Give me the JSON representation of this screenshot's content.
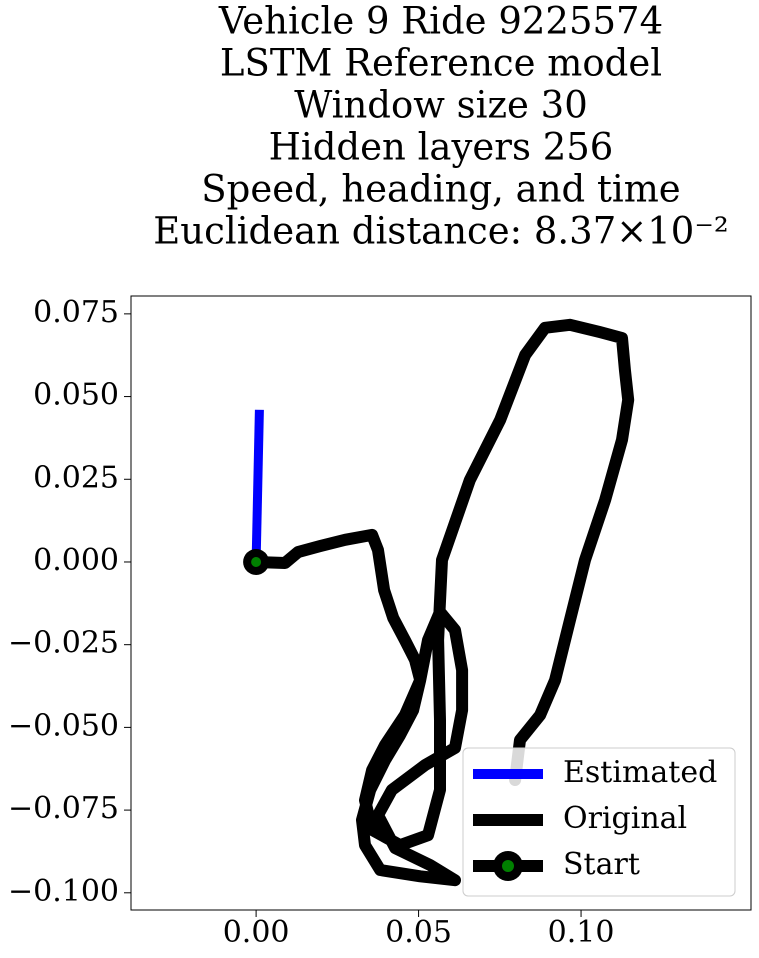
{
  "chart_data": {
    "type": "line",
    "title": [
      "Vehicle 9 Ride 9225574",
      "LSTM Reference model",
      "Window size 30",
      "Hidden layers 256",
      "Speed, heading, and time",
      "Euclidean distance: 8.37×10⁻²"
    ],
    "xlim": [
      -0.0385,
      0.1523
    ],
    "ylim": [
      -0.1052,
      0.0804
    ],
    "xticks": [
      {
        "value": 0,
        "label": "0.00"
      },
      {
        "value": 0.05,
        "label": "0.05"
      },
      {
        "value": 0.1,
        "label": "0.10"
      }
    ],
    "yticks": [
      {
        "value": 0.075,
        "label": "0.075"
      },
      {
        "value": 0.05,
        "label": "0.050"
      },
      {
        "value": 0.025,
        "label": "0.025"
      },
      {
        "value": 0,
        "label": "0.000"
      },
      {
        "value": -0.025,
        "label": "−0.025"
      },
      {
        "value": -0.05,
        "label": "−0.050"
      },
      {
        "value": -0.075,
        "label": "−0.075"
      },
      {
        "value": -0.1,
        "label": "−0.100"
      }
    ],
    "legend": "lower right",
    "series": [
      {
        "name": "Estimated",
        "color": "#0000ff",
        "x": [
          0,
          0.001
        ],
        "values": [
          0,
          0.046
        ]
      },
      {
        "name": "Original",
        "color": "#000000",
        "x": [
          0,
          0.0089,
          0.0129,
          0.0197,
          0.0274,
          0.0357,
          0.0375,
          0.0394,
          0.0422,
          0.0458,
          0.0489,
          0.0505,
          0.0483,
          0.0443,
          0.0397,
          0.0351,
          0.0326,
          0.0335,
          0.0382,
          0.0505,
          0.0612,
          0.0535,
          0.0428,
          0.0375,
          0.0418,
          0.052,
          0.0612,
          0.0634,
          0.0634,
          0.0612,
          0.0566,
          0.0529,
          0.0505,
          0.0458,
          0.0397,
          0.0357,
          0.0335,
          0.0357,
          0.0443,
          0.0529,
          0.0566,
          0.0566,
          0.056,
          0.0572,
          0.0658,
          0.0751,
          0.0828,
          0.0889,
          0.0966,
          0.1058,
          0.1126,
          0.1135,
          0.1145,
          0.1126,
          0.1074,
          0.1012,
          0.0966,
          0.092,
          0.0874,
          0.0812,
          0.0797
        ],
        "values": [
          0,
          -0.0003,
          0.003,
          0.0048,
          0.0067,
          0.0082,
          0.0036,
          -0.0085,
          -0.0169,
          -0.0236,
          -0.0296,
          -0.0357,
          -0.0448,
          -0.0523,
          -0.0599,
          -0.0689,
          -0.078,
          -0.0856,
          -0.0931,
          -0.095,
          -0.0962,
          -0.0916,
          -0.0865,
          -0.0765,
          -0.0689,
          -0.0614,
          -0.0562,
          -0.0448,
          -0.0327,
          -0.0206,
          -0.0151,
          -0.0236,
          -0.0357,
          -0.0463,
          -0.0553,
          -0.0629,
          -0.072,
          -0.081,
          -0.0856,
          -0.0826,
          -0.0689,
          -0.0478,
          -0.0236,
          0.0006,
          0.0248,
          0.0429,
          0.0626,
          0.0708,
          0.0717,
          0.0695,
          0.0677,
          0.0581,
          0.049,
          0.0369,
          0.0187,
          0.0006,
          -0.0175,
          -0.0357,
          -0.0463,
          -0.0538,
          -0.0659
        ]
      },
      {
        "name": "Start",
        "color": "#000000",
        "marker_color": "#008000",
        "x": [
          0
        ],
        "values": [
          0
        ]
      }
    ]
  }
}
